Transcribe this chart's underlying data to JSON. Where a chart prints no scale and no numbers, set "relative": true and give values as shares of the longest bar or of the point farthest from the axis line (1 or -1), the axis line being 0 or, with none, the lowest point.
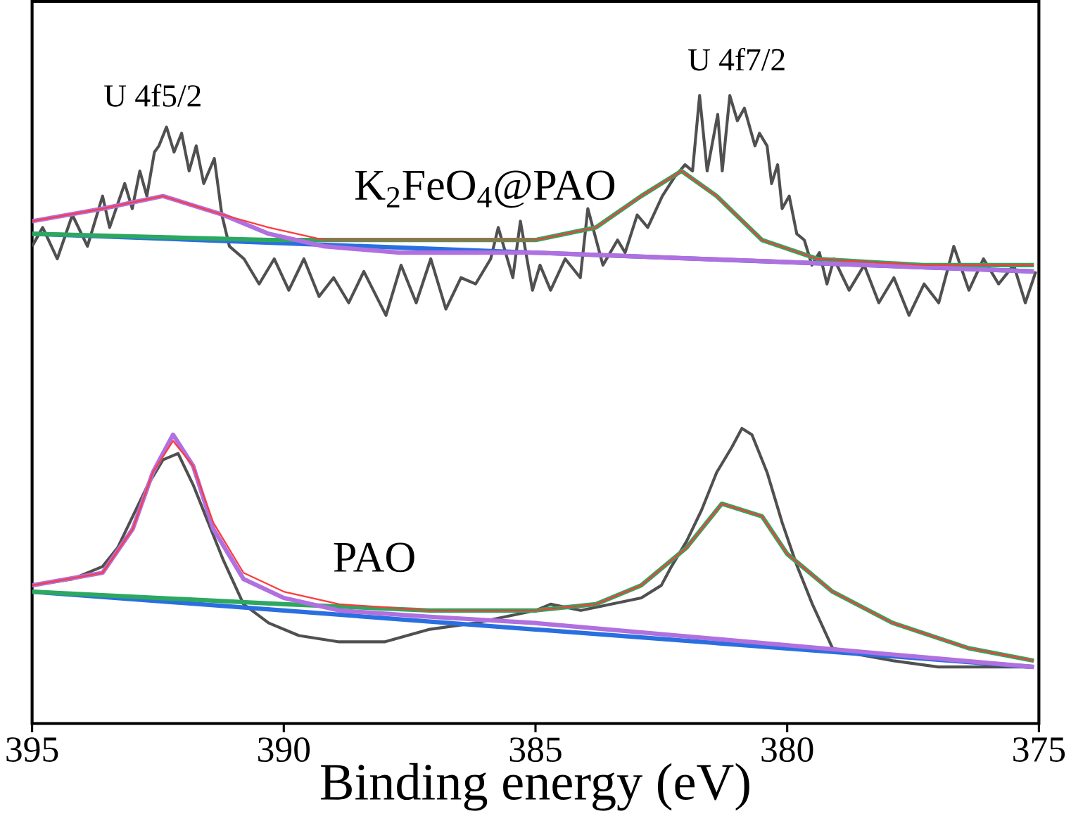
{
  "chart_data": {
    "type": "line",
    "relative": true,
    "xlabel": "Binding energy (eV)",
    "xlim": [
      395,
      375
    ],
    "xticks": [
      395,
      390,
      385,
      380,
      375
    ],
    "tick_labels": "x",
    "annotations": [
      "U 4f5/2",
      "U 4f7/2",
      "K$_{2}$FeO$_{4}$@PAO",
      "PAO"
    ],
    "series": [
      {
        "color": "#505050",
        "x": [
          395,
          394.79,
          394.5,
          394.2,
          393.9,
          393.6,
          393.46,
          393.16,
          393.01,
          392.86,
          392.72,
          392.57,
          392.48,
          392.33,
          392.18,
          392.03,
          391.88,
          391.74,
          391.59,
          391.38,
          391.23,
          391.08,
          390.79,
          390.49,
          390.19,
          389.9,
          389.6,
          389.3,
          389.01,
          388.71,
          388.41,
          387.97,
          387.67,
          387.37,
          387.08,
          386.78,
          386.48,
          386.19,
          385.89,
          385.74,
          385.45,
          385.3,
          385.06,
          384.91,
          384.7,
          384.41,
          384.11,
          383.96,
          383.66,
          383.37,
          383.22,
          382.98,
          382.77,
          382.48,
          382.24,
          382.03,
          381.88,
          381.74,
          381.59,
          381.38,
          381.29,
          381.14,
          380.99,
          380.85,
          380.64,
          380.55,
          380.4,
          380.31,
          380.19,
          380.1,
          379.96,
          379.81,
          379.66,
          379.51,
          379.36,
          379.21,
          379.07,
          378.77,
          378.47,
          378.18,
          377.88,
          377.58,
          377.28,
          376.99,
          376.69,
          376.39,
          376.1,
          375.8,
          375.5,
          375.27,
          375.06
        ],
        "values": [
          0.76,
          0.79,
          0.74,
          0.81,
          0.76,
          0.84,
          0.79,
          0.86,
          0.82,
          0.88,
          0.84,
          0.91,
          0.92,
          0.95,
          0.91,
          0.94,
          0.88,
          0.92,
          0.86,
          0.9,
          0.81,
          0.76,
          0.74,
          0.7,
          0.74,
          0.69,
          0.74,
          0.68,
          0.71,
          0.67,
          0.72,
          0.65,
          0.73,
          0.67,
          0.74,
          0.66,
          0.71,
          0.7,
          0.74,
          0.79,
          0.71,
          0.8,
          0.69,
          0.73,
          0.69,
          0.74,
          0.71,
          0.82,
          0.73,
          0.77,
          0.75,
          0.81,
          0.79,
          0.84,
          0.87,
          0.89,
          0.88,
          1.0,
          0.88,
          0.97,
          0.88,
          1.0,
          0.96,
          0.98,
          0.92,
          0.94,
          0.92,
          0.86,
          0.89,
          0.82,
          0.84,
          0.78,
          0.77,
          0.73,
          0.75,
          0.7,
          0.74,
          0.69,
          0.73,
          0.67,
          0.71,
          0.65,
          0.7,
          0.67,
          0.76,
          0.69,
          0.74,
          0.7,
          0.73,
          0.67,
          0.72
        ]
      },
      {
        "color": "#ff3b3b",
        "x": [
          395,
          393.6,
          392.4,
          391.2,
          390.3,
          389.2,
          387.7,
          385,
          383.8,
          382.9,
          382.1,
          381.4,
          380.5,
          379.4,
          377.3,
          375.1
        ],
        "values": [
          0.8,
          0.82,
          0.84,
          0.81,
          0.79,
          0.77,
          0.77,
          0.77,
          0.79,
          0.84,
          0.88,
          0.84,
          0.77,
          0.74,
          0.73,
          0.73
        ]
      },
      {
        "color": "#2a6fe0",
        "x": [
          395,
          375.1
        ],
        "values": [
          0.78,
          0.72
        ]
      },
      {
        "color": "#2ca860",
        "x": [
          395,
          390.3,
          387.7,
          385,
          383.8,
          382.9,
          382.1,
          381.4,
          380.5,
          379.4,
          377.3,
          375.1
        ],
        "values": [
          0.78,
          0.77,
          0.77,
          0.77,
          0.79,
          0.84,
          0.88,
          0.84,
          0.77,
          0.74,
          0.73,
          0.73
        ]
      },
      {
        "color": "#b070e0",
        "x": [
          395,
          393.6,
          392.4,
          391.2,
          390.3,
          389.2,
          387.7,
          385,
          375.1
        ],
        "values": [
          0.8,
          0.82,
          0.84,
          0.81,
          0.78,
          0.76,
          0.75,
          0.75,
          0.72
        ]
      },
      {
        "color": "#505050",
        "x": [
          395,
          394.2,
          393.6,
          393.3,
          393,
          392.7,
          392.4,
          392.1,
          391.8,
          391.5,
          391.2,
          390.8,
          390.3,
          389.7,
          388.9,
          388,
          387.1,
          386.2,
          385.6,
          385,
          384.7,
          384.1,
          383.5,
          382.9,
          382.5,
          382.3,
          382,
          381.7,
          381.4,
          381.1,
          380.9,
          380.7,
          380.4,
          380.1,
          379.8,
          379.5,
          379.1,
          378.6,
          377.9,
          377,
          376.1,
          375.1
        ],
        "values": [
          0.22,
          0.23,
          0.25,
          0.28,
          0.33,
          0.38,
          0.42,
          0.43,
          0.38,
          0.32,
          0.26,
          0.19,
          0.16,
          0.14,
          0.13,
          0.13,
          0.15,
          0.16,
          0.17,
          0.18,
          0.19,
          0.18,
          0.19,
          0.2,
          0.22,
          0.25,
          0.29,
          0.34,
          0.4,
          0.44,
          0.47,
          0.46,
          0.4,
          0.32,
          0.25,
          0.19,
          0.12,
          0.11,
          0.1,
          0.09,
          0.09,
          0.09
        ]
      },
      {
        "color": "#ff3b3b",
        "x": [
          395,
          393.6,
          393,
          392.6,
          392.2,
          391.8,
          391.4,
          390.8,
          390,
          388.9,
          387.1,
          385,
          383.8,
          382.9,
          382,
          381.3,
          380.5,
          380,
          379.1,
          377.9,
          376.4,
          375.1
        ],
        "values": [
          0.22,
          0.24,
          0.31,
          0.4,
          0.45,
          0.41,
          0.32,
          0.24,
          0.21,
          0.19,
          0.18,
          0.18,
          0.19,
          0.22,
          0.28,
          0.35,
          0.33,
          0.27,
          0.21,
          0.16,
          0.12,
          0.1
        ]
      },
      {
        "color": "#2a6fe0",
        "x": [
          395,
          375.1
        ],
        "values": [
          0.21,
          0.09
        ]
      },
      {
        "color": "#2ca860",
        "x": [
          395,
          390,
          387.1,
          385,
          383.8,
          382.9,
          382,
          381.3,
          380.5,
          380,
          379.1,
          377.9,
          376.4,
          375.1
        ],
        "values": [
          0.21,
          0.19,
          0.18,
          0.18,
          0.19,
          0.22,
          0.28,
          0.35,
          0.33,
          0.27,
          0.21,
          0.16,
          0.12,
          0.1
        ]
      },
      {
        "color": "#b070e0",
        "x": [
          395,
          393.6,
          393,
          392.6,
          392.2,
          391.8,
          391.4,
          390.8,
          390,
          388.9,
          387.1,
          385,
          375.1
        ],
        "values": [
          0.22,
          0.24,
          0.31,
          0.4,
          0.46,
          0.41,
          0.31,
          0.23,
          0.2,
          0.18,
          0.17,
          0.16,
          0.09
        ]
      }
    ]
  }
}
